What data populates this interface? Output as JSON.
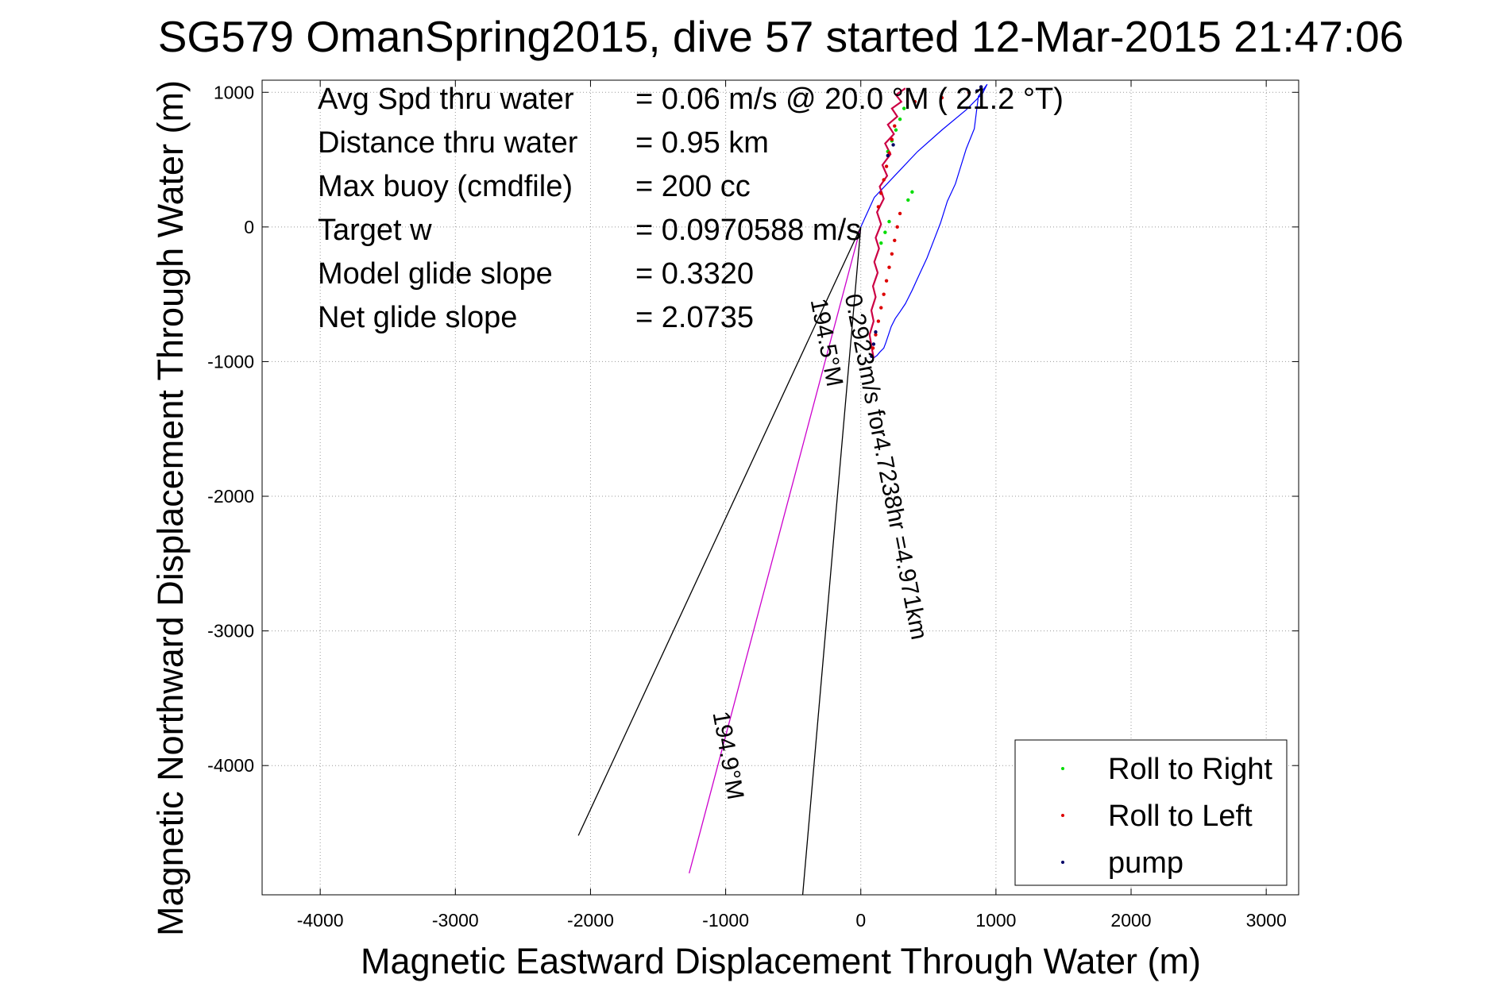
{
  "chart_data": {
    "type": "line",
    "title": "SG579 OmanSpring2015, dive 57 started 12-Mar-2015 21:47:06",
    "xlabel": "Magnetic Eastward Displacement Through Water (m)",
    "ylabel": "Magnetic Northward Displacement Through Water (m)",
    "xlim": [
      -4430,
      3240
    ],
    "ylim": [
      -4960,
      1090
    ],
    "xticks": [
      -4000,
      -3000,
      -2000,
      -1000,
      0,
      1000,
      2000,
      3000
    ],
    "yticks": [
      1000,
      0,
      -1000,
      -2000,
      -3000,
      -4000
    ],
    "grid": true,
    "stats": [
      {
        "label": "Avg Spd thru water",
        "value": "=  0.06 m/s @  20.0 °M ( 21.2 °T)"
      },
      {
        "label": "Distance thru water",
        "value": "=  0.95 km"
      },
      {
        "label": "Max buoy (cmdfile)",
        "value": "= 200 cc"
      },
      {
        "label": "Target w",
        "value": "= 0.0970588 m/s"
      },
      {
        "label": "Model glide slope",
        "value": "= 0.3320"
      },
      {
        "label": "Net glide slope",
        "value": "= 2.0735"
      }
    ],
    "annotations": [
      {
        "text": "0.2923m/s for4.7238hr =4.971km",
        "x": -118,
        "y": -510,
        "angle": 79
      },
      {
        "text": "194.5°M",
        "x": -372,
        "y": -545,
        "angle": 79
      },
      {
        "text": "194.9°M",
        "x": -1095,
        "y": -3610,
        "angle": 80
      }
    ],
    "lines": [
      {
        "name": "current vector",
        "color": "#cc00cc",
        "x": [
          0,
          -1270
        ],
        "y": [
          0,
          -4800
        ]
      },
      {
        "name": "cone left",
        "color": "#000000",
        "x": [
          0,
          -2090
        ],
        "y": [
          0,
          -4520
        ]
      },
      {
        "name": "cone right",
        "color": "#000000",
        "x": [
          0,
          -430
        ],
        "y": [
          0,
          -4960
        ]
      }
    ],
    "track": {
      "color": "#0000ff",
      "x": [
        0,
        100,
        260,
        420,
        600,
        780,
        900,
        935,
        870,
        840,
        780,
        700,
        640,
        590,
        540,
        490,
        430,
        380,
        330,
        290,
        255,
        225,
        205,
        185,
        170,
        140,
        120,
        105,
        95
      ],
      "y": [
        0,
        220,
        390,
        560,
        720,
        870,
        990,
        1060,
        970,
        730,
        580,
        320,
        190,
        30,
        -100,
        -230,
        -360,
        -470,
        -570,
        -630,
        -680,
        -740,
        -800,
        -860,
        -900,
        -930,
        -955,
        -965,
        -975
      ]
    },
    "sawtooth": {
      "x": [
        95,
        80,
        65,
        95,
        78,
        110,
        90,
        125,
        100,
        135,
        110,
        150,
        120,
        170,
        140,
        195,
        160,
        220,
        180,
        245,
        200,
        270,
        230,
        300,
        260,
        330
      ],
      "y": [
        -975,
        -890,
        -800,
        -700,
        -620,
        -520,
        -440,
        -340,
        -260,
        -160,
        -80,
        20,
        110,
        210,
        300,
        380,
        460,
        540,
        620,
        690,
        760,
        820,
        880,
        930,
        980,
        1030
      ]
    },
    "series": [
      {
        "name": "Roll to Right",
        "color": "#00dd00",
        "marker": "point",
        "x": [
          200,
          230,
          260,
          290,
          320,
          350,
          380,
          150,
          180,
          210
        ],
        "y": [
          560,
          640,
          720,
          800,
          880,
          200,
          260,
          -120,
          -40,
          40
        ]
      },
      {
        "name": "Roll to Left",
        "color": "#dd0000",
        "marker": "point",
        "x": [
          90,
          110,
          130,
          150,
          170,
          190,
          210,
          230,
          250,
          270,
          290,
          130,
          150,
          170,
          190,
          210,
          230,
          250,
          400,
          600,
          800
        ],
        "y": [
          -900,
          -800,
          -700,
          -600,
          -500,
          -400,
          -300,
          -200,
          -100,
          0,
          100,
          150,
          250,
          350,
          450,
          550,
          650,
          750,
          930,
          960,
          1000
        ]
      },
      {
        "name": "pump",
        "color": "#000066",
        "marker": "point",
        "x": [
          80,
          95,
          110,
          200,
          240,
          860,
          890
        ],
        "y": [
          -960,
          -870,
          -780,
          530,
          610,
          1010,
          1040
        ]
      }
    ],
    "legend": {
      "placement": "bottom-right"
    }
  }
}
